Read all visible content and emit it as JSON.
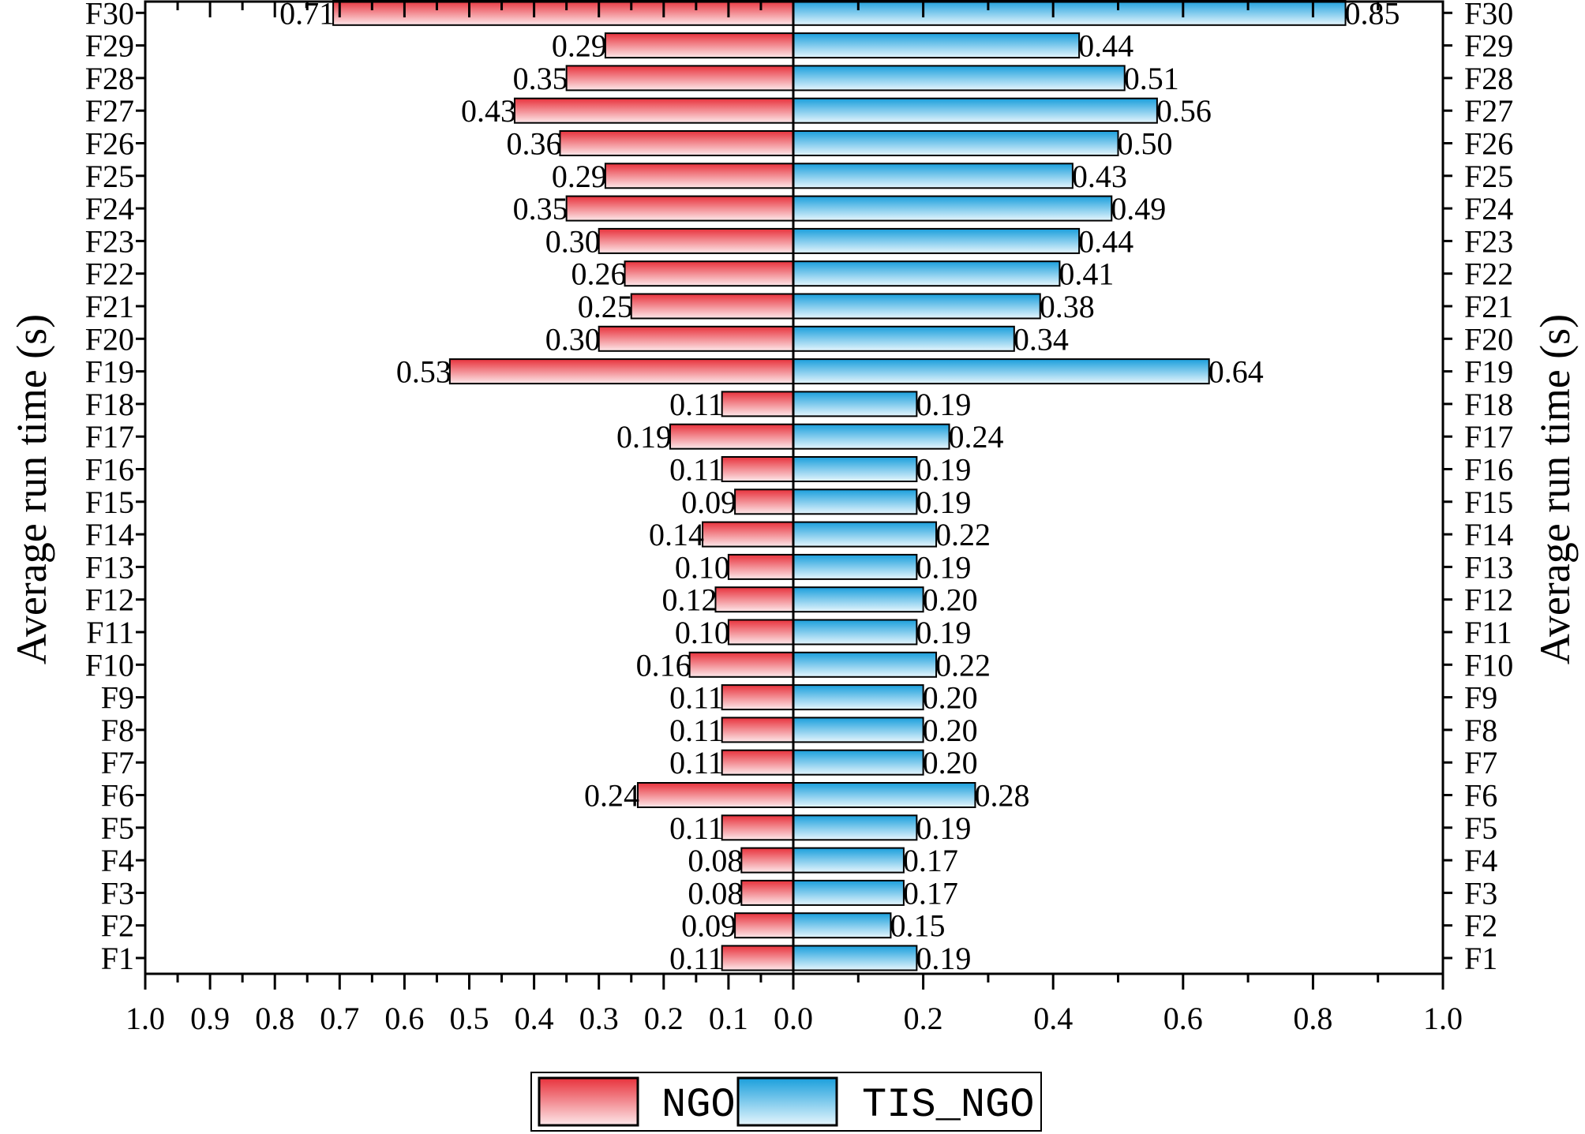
{
  "chart_data": {
    "type": "bar",
    "orientation": "horizontal-diverging",
    "categories": [
      "F1",
      "F2",
      "F3",
      "F4",
      "F5",
      "F6",
      "F7",
      "F8",
      "F9",
      "F10",
      "F11",
      "F12",
      "F13",
      "F14",
      "F15",
      "F16",
      "F17",
      "F18",
      "F19",
      "F20",
      "F21",
      "F22",
      "F23",
      "F24",
      "F25",
      "F26",
      "F27",
      "F28",
      "F29",
      "F30"
    ],
    "series": [
      {
        "name": "NGO",
        "side": "left",
        "color_top": "#e8323c",
        "color_bottom": "#fde8ea",
        "values": [
          0.11,
          0.09,
          0.08,
          0.08,
          0.11,
          0.24,
          0.11,
          0.11,
          0.11,
          0.16,
          0.1,
          0.12,
          0.1,
          0.14,
          0.09,
          0.11,
          0.19,
          0.11,
          0.53,
          0.3,
          0.25,
          0.26,
          0.3,
          0.35,
          0.29,
          0.36,
          0.43,
          0.35,
          0.29,
          0.71
        ],
        "labels": [
          "0.11",
          "0.09",
          "0.08",
          "0.08",
          "0.11",
          "0.24",
          "0.11",
          "0.11",
          "0.11",
          "0.16",
          "0.10",
          "0.12",
          "0.10",
          "0.14",
          "0.09",
          "0.11",
          "0.19",
          "0.11",
          "0.53",
          "0.30",
          "0.25",
          "0.26",
          "0.30",
          "0.35",
          "0.29",
          "0.36",
          "0.43",
          "0.35",
          "0.29",
          "0.71"
        ]
      },
      {
        "name": "TIS_NGO",
        "side": "right",
        "color_top": "#1a9fdc",
        "color_bottom": "#e6f6fd",
        "values": [
          0.19,
          0.15,
          0.17,
          0.17,
          0.19,
          0.28,
          0.2,
          0.2,
          0.2,
          0.22,
          0.19,
          0.2,
          0.19,
          0.22,
          0.19,
          0.19,
          0.24,
          0.19,
          0.64,
          0.34,
          0.38,
          0.41,
          0.44,
          0.49,
          0.43,
          0.5,
          0.56,
          0.51,
          0.44,
          0.85
        ],
        "labels": [
          "0.19",
          "0.15",
          "0.17",
          "0.17",
          "0.19",
          "0.28",
          "0.20",
          "0.20",
          "0.20",
          "0.22",
          "0.19",
          "0.20",
          "0.19",
          "0.22",
          "0.19",
          "0.19",
          "0.24",
          "0.19",
          "0.64",
          "0.34",
          "0.38",
          "0.41",
          "0.44",
          "0.49",
          "0.43",
          "0.50",
          "0.56",
          "0.51",
          "0.44",
          "0.85"
        ]
      }
    ],
    "left_axis": {
      "range": [
        1.0,
        0.0
      ],
      "tick_labels": [
        "1.0",
        "0.9",
        "0.8",
        "0.7",
        "0.6",
        "0.5",
        "0.4",
        "0.3",
        "0.2",
        "0.1",
        "0.0"
      ]
    },
    "right_axis": {
      "range": [
        0.0,
        1.0
      ],
      "tick_labels": [
        "0.2",
        "0.4",
        "0.6",
        "0.8",
        "1.0"
      ]
    },
    "ylabel_left": "Average run time (s)",
    "ylabel_right": "Average run time (s)",
    "legend": {
      "position": "bottom-center",
      "entries": [
        "NGO",
        "TIS_NGO"
      ]
    }
  }
}
